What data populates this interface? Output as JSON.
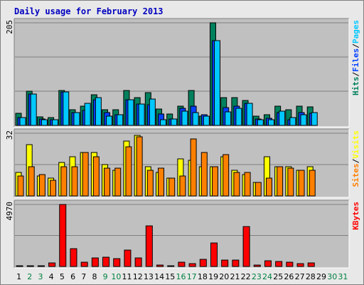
{
  "colors": {
    "title": "#0000c0",
    "hits": "#00805c",
    "files": "#0040ff",
    "pages": "#00c8ff",
    "visits": "#ffff00",
    "sites": "#ff8000",
    "kbytes": "#ff0000",
    "weekend": "#008040",
    "weekday": "#000000",
    "panel": "#c0c0c0",
    "grid": "#808080"
  },
  "chart_data": {
    "type": "bar",
    "title": "Daily usage for February 2013",
    "x": [
      "1",
      "2",
      "3",
      "4",
      "5",
      "6",
      "7",
      "8",
      "9",
      "10",
      "11",
      "12",
      "13",
      "14",
      "15",
      "16",
      "17",
      "18",
      "19",
      "20",
      "21",
      "22",
      "23",
      "24",
      "25",
      "26",
      "27",
      "28",
      "29",
      "30",
      "31"
    ],
    "weekend_days": [
      2,
      3,
      9,
      10,
      16,
      17,
      23,
      24,
      30,
      31
    ],
    "panels": [
      {
        "scale_label": "205",
        "ymax": 205,
        "legend": [
          "Hits",
          "/",
          "Files",
          "/",
          "Pages"
        ],
        "series": [
          {
            "name": "Hits",
            "values": [
              24,
              69,
              17,
              15,
              70,
              32,
              38,
              61,
              31,
              31,
              70,
              56,
              66,
              33,
              23,
              38,
              70,
              19,
              205,
              55,
              55,
              50,
              18,
              21,
              39,
              31,
              38,
              37,
              0,
              0,
              0
            ]
          },
          {
            "name": "Files",
            "values": [
              15,
              62,
              13,
              11,
              67,
              26,
              30,
              51,
              26,
              22,
              51,
              42,
              41,
              23,
              13,
              34,
              38,
              21,
              169,
              36,
              39,
              44,
              13,
              14,
              26,
              12,
              26,
              24,
              0,
              0,
              0
            ]
          },
          {
            "name": "Pages",
            "values": [
              15,
              62,
              11,
              11,
              67,
              26,
              44,
              55,
              18,
              21,
              51,
              43,
              52,
              12,
              13,
              28,
              25,
              19,
              169,
              27,
              34,
              44,
              11,
              12,
              28,
              16,
              21,
              26,
              0,
              0,
              0
            ]
          }
        ]
      },
      {
        "scale_label": "32",
        "ymax": 32,
        "legend": [
          "Sites",
          "/",
          "Visits"
        ],
        "series": [
          {
            "name": "Visits",
            "values": [
              12,
              26,
              10,
              9,
              17,
              20,
              22,
              22,
              16,
              13,
              28,
              31,
              15,
              12,
              9,
              19,
              18,
              15,
              15,
              20,
              13,
              11,
              7,
              20,
              15,
              15,
              13,
              15,
              0,
              0,
              0
            ]
          },
          {
            "name": "Sites",
            "values": [
              10,
              15,
              11,
              8,
              15,
              15,
              22,
              20,
              14,
              14,
              25,
              30,
              13,
              14,
              9,
              10,
              29,
              22,
              15,
              21,
              12,
              12,
              7,
              9,
              15,
              14,
              13,
              13,
              0,
              0,
              0
            ]
          }
        ]
      },
      {
        "scale_label": "4970",
        "ymax": 4970,
        "legend": [
          "KBytes"
        ],
        "series": [
          {
            "name": "KBytes",
            "values": [
              68,
              68,
              68,
              292,
              4970,
              1449,
              318,
              663,
              769,
              643,
              1315,
              685,
              3253,
              136,
              67,
              335,
              248,
              589,
              1868,
              525,
              488,
              3177,
              96,
              457,
              407,
              343,
              210,
              311,
              0,
              0,
              0
            ]
          }
        ]
      }
    ]
  }
}
